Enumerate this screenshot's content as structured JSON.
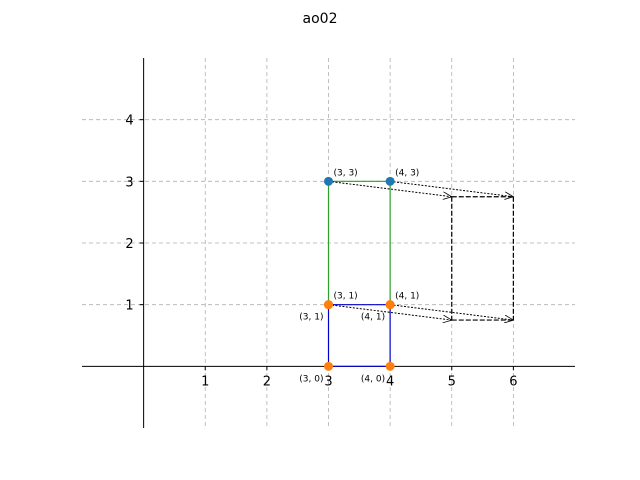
{
  "chart_data": {
    "type": "scatter",
    "title": "ao02",
    "xlabel": "",
    "ylabel": "",
    "xlim": [
      -1,
      7
    ],
    "ylim": [
      -1,
      5
    ],
    "grid": true,
    "x_ticks": [
      {
        "value": 1,
        "label": "1"
      },
      {
        "value": 2,
        "label": "2"
      },
      {
        "value": 3,
        "label": "3"
      },
      {
        "value": 4,
        "label": "4"
      },
      {
        "value": 5,
        "label": "5"
      },
      {
        "value": 6,
        "label": "6"
      }
    ],
    "y_ticks": [
      {
        "value": 1,
        "label": "1"
      },
      {
        "value": 2,
        "label": "2"
      },
      {
        "value": 3,
        "label": "3"
      },
      {
        "value": 4,
        "label": "4"
      }
    ],
    "points": [
      {
        "x": 3,
        "y": 3,
        "label": "(3, 3)",
        "color": "#1f77b4",
        "label_pos": "upper-right"
      },
      {
        "x": 4,
        "y": 3,
        "label": "(4, 3)",
        "color": "#1f77b4",
        "label_pos": "upper-right"
      },
      {
        "x": 3,
        "y": 1,
        "label": "(3, 1)",
        "color": "#ff7f0e",
        "label_pos": "upper-right"
      },
      {
        "x": 4,
        "y": 1,
        "label": "(4, 1)",
        "color": "#ff7f0e",
        "label_pos": "upper-right"
      },
      {
        "x": 3,
        "y": 1,
        "label": "(3, 1)",
        "color": "#ff7f0e",
        "label_pos": "lower-left"
      },
      {
        "x": 4,
        "y": 1,
        "label": "(4, 1)",
        "color": "#ff7f0e",
        "label_pos": "lower-left"
      },
      {
        "x": 3,
        "y": 0,
        "label": "(3, 0)",
        "color": "#ff7f0e",
        "label_pos": "lower-left"
      },
      {
        "x": 4,
        "y": 0,
        "label": "(4, 0)",
        "color": "#ff7f0e",
        "label_pos": "lower-left"
      }
    ],
    "segments": [
      {
        "from": [
          3,
          3
        ],
        "to": [
          4,
          3
        ],
        "color": "#2ca02c",
        "style": "solid"
      },
      {
        "from": [
          3,
          3
        ],
        "to": [
          3,
          1
        ],
        "color": "#2ca02c",
        "style": "solid"
      },
      {
        "from": [
          4,
          3
        ],
        "to": [
          4,
          1
        ],
        "color": "#2ca02c",
        "style": "solid"
      },
      {
        "from": [
          3,
          1
        ],
        "to": [
          4,
          1
        ],
        "color": "#0000cc",
        "style": "solid"
      },
      {
        "from": [
          3,
          1
        ],
        "to": [
          3,
          0
        ],
        "color": "#0000cc",
        "style": "solid"
      },
      {
        "from": [
          4,
          1
        ],
        "to": [
          4,
          0
        ],
        "color": "#0000cc",
        "style": "solid"
      },
      {
        "from": [
          3,
          0
        ],
        "to": [
          4,
          0
        ],
        "color": "#0000cc",
        "style": "solid"
      },
      {
        "from": [
          5,
          2.75
        ],
        "to": [
          6,
          2.75
        ],
        "color": "#000000",
        "style": "dashed"
      },
      {
        "from": [
          5,
          2.75
        ],
        "to": [
          5,
          0.75
        ],
        "color": "#000000",
        "style": "dashed"
      },
      {
        "from": [
          6,
          2.75
        ],
        "to": [
          6,
          0.75
        ],
        "color": "#000000",
        "style": "dashed"
      },
      {
        "from": [
          5,
          0.75
        ],
        "to": [
          6,
          0.75
        ],
        "color": "#000000",
        "style": "dashed"
      }
    ],
    "arrows": [
      {
        "from": [
          3,
          3
        ],
        "to": [
          5,
          2.75
        ],
        "color": "#000000",
        "style": "dotted"
      },
      {
        "from": [
          4,
          3
        ],
        "to": [
          6,
          2.75
        ],
        "color": "#000000",
        "style": "dotted"
      },
      {
        "from": [
          3,
          1
        ],
        "to": [
          5,
          0.75
        ],
        "color": "#000000",
        "style": "dotted"
      },
      {
        "from": [
          4,
          1
        ],
        "to": [
          6,
          0.75
        ],
        "color": "#000000",
        "style": "dotted"
      }
    ]
  }
}
